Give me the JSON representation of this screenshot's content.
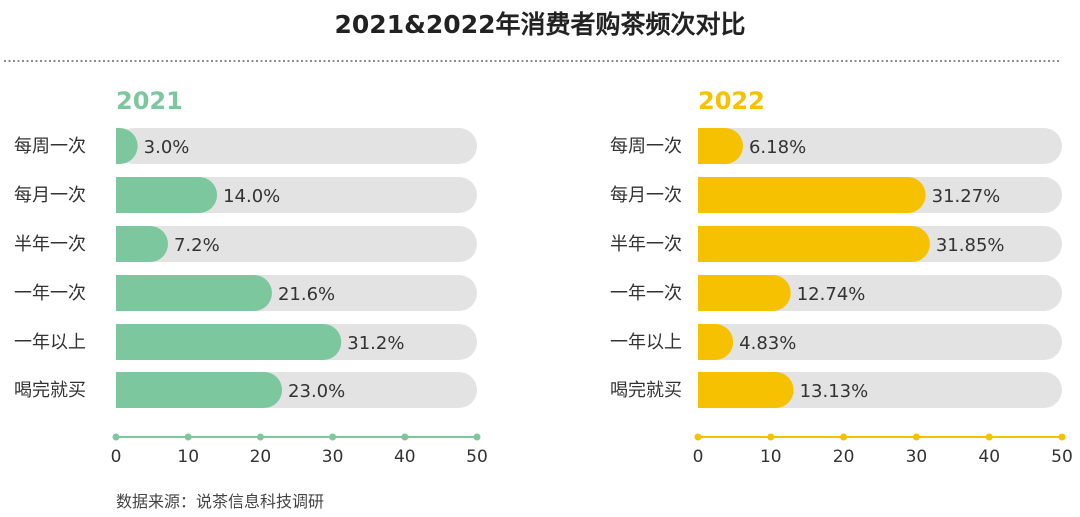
{
  "title": "2021&2022年消费者购茶频次对比",
  "source": "数据来源：说茶信息科技调研",
  "colors": {
    "track": "#e3e3e3",
    "text": "#333333",
    "divider": "#666666"
  },
  "chart_data": [
    {
      "type": "bar",
      "orientation": "horizontal",
      "title": "2021",
      "color": "#7cc79e",
      "categories": [
        "每周一次",
        "每月一次",
        "半年一次",
        "一年一次",
        "一年以上",
        "喝完就买"
      ],
      "values": [
        3.0,
        14.0,
        7.2,
        21.6,
        31.2,
        23.0
      ],
      "value_labels": [
        "3.0%",
        "14.0%",
        "7.2%",
        "21.6%",
        "31.2%",
        "23.0%"
      ],
      "xlim": [
        0,
        50
      ],
      "xticks": [
        "0",
        "10",
        "20",
        "30",
        "40",
        "50"
      ]
    },
    {
      "type": "bar",
      "orientation": "horizontal",
      "title": "2022",
      "color": "#f5c100",
      "categories": [
        "每周一次",
        "每月一次",
        "半年一次",
        "一年一次",
        "一年以上",
        "喝完就买"
      ],
      "values": [
        6.18,
        31.27,
        31.85,
        12.74,
        4.83,
        13.13
      ],
      "value_labels": [
        "6.18%",
        "31.27%",
        "31.85%",
        "12.74%",
        "4.83%",
        "13.13%"
      ],
      "xlim": [
        0,
        50
      ],
      "xticks": [
        "0",
        "10",
        "20",
        "30",
        "40",
        "50"
      ]
    }
  ]
}
